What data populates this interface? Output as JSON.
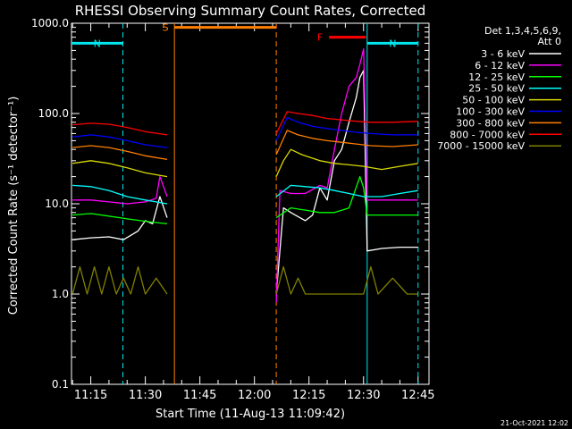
{
  "chart_data": {
    "type": "line",
    "title": "RHESSI Observing Summary Count Rates, Corrected",
    "xlabel": "Start Time (11-Aug-13 11:09:42)",
    "ylabel": "Corrected Count Rate (s⁻¹ detector⁻¹)",
    "y_scale": "log",
    "ylim": [
      0.1,
      1000
    ],
    "xlim": [
      "11:09:42",
      "12:48:00"
    ],
    "x_ticks": [
      "11:15",
      "11:30",
      "11:45",
      "12:00",
      "12:15",
      "12:30",
      "12:45"
    ],
    "y_ticks": [
      "0.1",
      "1.0",
      "10.0",
      "100.0",
      "1000.0"
    ],
    "legend_title": "Det 1,3,4,5,6,9,",
    "legend_subtitle": "Att 0",
    "legend_position": "right",
    "footer": "21-Oct-2021 12:02",
    "annotations": [
      {
        "label": "N",
        "type": "night",
        "color": "#00e5ee",
        "start": "11:09:42",
        "end": "11:23:50"
      },
      {
        "label": "S",
        "type": "saa",
        "color": "#ff7f00",
        "start": "11:38:00",
        "end": "12:06:00"
      },
      {
        "label": "N",
        "type": "night",
        "color": "#00e5ee",
        "start": "12:31:00",
        "end": "12:45:00"
      },
      {
        "label": "F",
        "type": "flare",
        "color": "#ff0000",
        "start": "12:20:30",
        "end": "12:30:40"
      }
    ],
    "series": [
      {
        "name": "3 - 6 keV",
        "color": "#ffffff",
        "points": [
          [
            "11:10",
            4.0
          ],
          [
            "11:15",
            4.2
          ],
          [
            "11:20",
            4.3
          ],
          [
            "11:24",
            4.0
          ],
          [
            "11:28",
            5.0
          ],
          [
            "11:30",
            6.5
          ],
          [
            "11:32",
            6.0
          ],
          [
            "11:34",
            12.0
          ],
          [
            "11:36",
            7.0
          ],
          [
            "12:06",
            1.0
          ],
          [
            "12:08",
            9.0
          ],
          [
            "12:10",
            8.0
          ],
          [
            "12:14",
            6.5
          ],
          [
            "12:16",
            7.5
          ],
          [
            "12:18",
            15.0
          ],
          [
            "12:20",
            11.0
          ],
          [
            "12:22",
            30.0
          ],
          [
            "12:24",
            40.0
          ],
          [
            "12:26",
            80.0
          ],
          [
            "12:28",
            150.0
          ],
          [
            "12:29",
            250.0
          ],
          [
            "12:30",
            300.0
          ],
          [
            "12:31",
            3.0
          ],
          [
            "12:35",
            3.2
          ],
          [
            "12:40",
            3.3
          ],
          [
            "12:45",
            3.3
          ]
        ]
      },
      {
        "name": "6 - 12 keV",
        "color": "#ff00ff",
        "points": [
          [
            "11:10",
            11.0
          ],
          [
            "11:15",
            11.0
          ],
          [
            "11:20",
            10.5
          ],
          [
            "11:25",
            10.0
          ],
          [
            "11:30",
            10.5
          ],
          [
            "11:33",
            11.5
          ],
          [
            "11:34",
            20.0
          ],
          [
            "11:36",
            12.0
          ],
          [
            "12:06",
            0.8
          ],
          [
            "12:07",
            14.0
          ],
          [
            "12:10",
            13.0
          ],
          [
            "12:14",
            13.0
          ],
          [
            "12:18",
            16.0
          ],
          [
            "12:20",
            15.0
          ],
          [
            "12:22",
            40.0
          ],
          [
            "12:24",
            100.0
          ],
          [
            "12:26",
            200.0
          ],
          [
            "12:28",
            250.0
          ],
          [
            "12:29",
            350.0
          ],
          [
            "12:30",
            520.0
          ],
          [
            "12:31",
            11.0
          ],
          [
            "12:35",
            11.0
          ],
          [
            "12:40",
            11.0
          ],
          [
            "12:45",
            11.0
          ]
        ]
      },
      {
        "name": "12 - 25 keV",
        "color": "#00ff00",
        "points": [
          [
            "11:10",
            7.5
          ],
          [
            "11:15",
            7.8
          ],
          [
            "11:20",
            7.3
          ],
          [
            "11:25",
            6.8
          ],
          [
            "11:30",
            6.4
          ],
          [
            "11:36",
            6.0
          ],
          [
            "12:06",
            7.0
          ],
          [
            "12:10",
            9.0
          ],
          [
            "12:14",
            8.5
          ],
          [
            "12:18",
            8.0
          ],
          [
            "12:22",
            8.0
          ],
          [
            "12:26",
            9.0
          ],
          [
            "12:29",
            20.0
          ],
          [
            "12:30",
            15.0
          ],
          [
            "12:31",
            7.5
          ],
          [
            "12:35",
            7.5
          ],
          [
            "12:40",
            7.5
          ],
          [
            "12:45",
            7.5
          ]
        ]
      },
      {
        "name": "25 - 50 keV",
        "color": "#00ffff",
        "points": [
          [
            "11:10",
            16.0
          ],
          [
            "11:15",
            15.5
          ],
          [
            "11:20",
            14.0
          ],
          [
            "11:25",
            12.0
          ],
          [
            "11:30",
            11.0
          ],
          [
            "11:36",
            10.0
          ],
          [
            "12:06",
            12.0
          ],
          [
            "12:10",
            16.0
          ],
          [
            "12:14",
            15.5
          ],
          [
            "12:18",
            15.0
          ],
          [
            "12:22",
            14.0
          ],
          [
            "12:26",
            13.0
          ],
          [
            "12:30",
            12.0
          ],
          [
            "12:35",
            12.0
          ],
          [
            "12:40",
            13.0
          ],
          [
            "12:45",
            14.0
          ]
        ]
      },
      {
        "name": "50 - 100 keV",
        "color": "#d8d800",
        "points": [
          [
            "11:10",
            28.0
          ],
          [
            "11:15",
            30.0
          ],
          [
            "11:20",
            28.0
          ],
          [
            "11:25",
            25.0
          ],
          [
            "11:30",
            22.0
          ],
          [
            "11:36",
            20.0
          ],
          [
            "12:06",
            20.0
          ],
          [
            "12:08",
            30.0
          ],
          [
            "12:10",
            40.0
          ],
          [
            "12:13",
            35.0
          ],
          [
            "12:18",
            30.0
          ],
          [
            "12:22",
            28.0
          ],
          [
            "12:26",
            27.0
          ],
          [
            "12:30",
            26.0
          ],
          [
            "12:35",
            24.0
          ],
          [
            "12:40",
            26.0
          ],
          [
            "12:45",
            28.0
          ]
        ]
      },
      {
        "name": "100 - 300 keV",
        "color": "#0000ff",
        "points": [
          [
            "11:10",
            55.0
          ],
          [
            "11:15",
            58.0
          ],
          [
            "11:20",
            55.0
          ],
          [
            "11:25",
            50.0
          ],
          [
            "11:30",
            45.0
          ],
          [
            "11:36",
            42.0
          ],
          [
            "12:06",
            50.0
          ],
          [
            "12:09",
            90.0
          ],
          [
            "12:12",
            80.0
          ],
          [
            "12:16",
            72.0
          ],
          [
            "12:20",
            68.0
          ],
          [
            "12:24",
            65.0
          ],
          [
            "12:28",
            62.0
          ],
          [
            "12:32",
            60.0
          ],
          [
            "12:38",
            58.0
          ],
          [
            "12:45",
            58.0
          ]
        ]
      },
      {
        "name": "300 - 800 keV",
        "color": "#ff7f00",
        "points": [
          [
            "11:10",
            42.0
          ],
          [
            "11:15",
            44.0
          ],
          [
            "11:20",
            42.0
          ],
          [
            "11:25",
            38.0
          ],
          [
            "11:30",
            34.0
          ],
          [
            "11:36",
            31.0
          ],
          [
            "12:06",
            35.0
          ],
          [
            "12:09",
            65.0
          ],
          [
            "12:12",
            58.0
          ],
          [
            "12:16",
            53.0
          ],
          [
            "12:20",
            50.0
          ],
          [
            "12:24",
            48.0
          ],
          [
            "12:28",
            46.0
          ],
          [
            "12:32",
            44.0
          ],
          [
            "12:38",
            43.0
          ],
          [
            "12:45",
            45.0
          ]
        ]
      },
      {
        "name": "800 - 7000 keV",
        "color": "#ff0000",
        "points": [
          [
            "11:10",
            75.0
          ],
          [
            "11:15",
            78.0
          ],
          [
            "11:20",
            76.0
          ],
          [
            "11:25",
            70.0
          ],
          [
            "11:30",
            63.0
          ],
          [
            "11:36",
            58.0
          ],
          [
            "12:06",
            60.0
          ],
          [
            "12:09",
            105.0
          ],
          [
            "12:12",
            100.0
          ],
          [
            "12:16",
            95.0
          ],
          [
            "12:20",
            88.0
          ],
          [
            "12:24",
            85.0
          ],
          [
            "12:28",
            82.0
          ],
          [
            "12:32",
            80.0
          ],
          [
            "12:38",
            80.0
          ],
          [
            "12:45",
            82.0
          ]
        ]
      },
      {
        "name": "7000 - 15000 keV",
        "color": "#808000",
        "points": [
          [
            "11:10",
            1.0
          ],
          [
            "11:12",
            2.0
          ],
          [
            "11:14",
            1.0
          ],
          [
            "11:16",
            2.0
          ],
          [
            "11:18",
            1.0
          ],
          [
            "11:20",
            2.0
          ],
          [
            "11:22",
            1.0
          ],
          [
            "11:24",
            1.5
          ],
          [
            "11:26",
            1.0
          ],
          [
            "11:28",
            2.0
          ],
          [
            "11:30",
            1.0
          ],
          [
            "11:33",
            1.5
          ],
          [
            "11:36",
            1.0
          ],
          [
            "12:06",
            1.0
          ],
          [
            "12:08",
            2.0
          ],
          [
            "12:10",
            1.0
          ],
          [
            "12:12",
            1.5
          ],
          [
            "12:14",
            1.0
          ],
          [
            "12:20",
            1.0
          ],
          [
            "12:24",
            1.0
          ],
          [
            "12:30",
            1.0
          ],
          [
            "12:32",
            2.0
          ],
          [
            "12:34",
            1.0
          ],
          [
            "12:38",
            1.5
          ],
          [
            "12:42",
            1.0
          ],
          [
            "12:45",
            1.0
          ]
        ]
      }
    ]
  }
}
